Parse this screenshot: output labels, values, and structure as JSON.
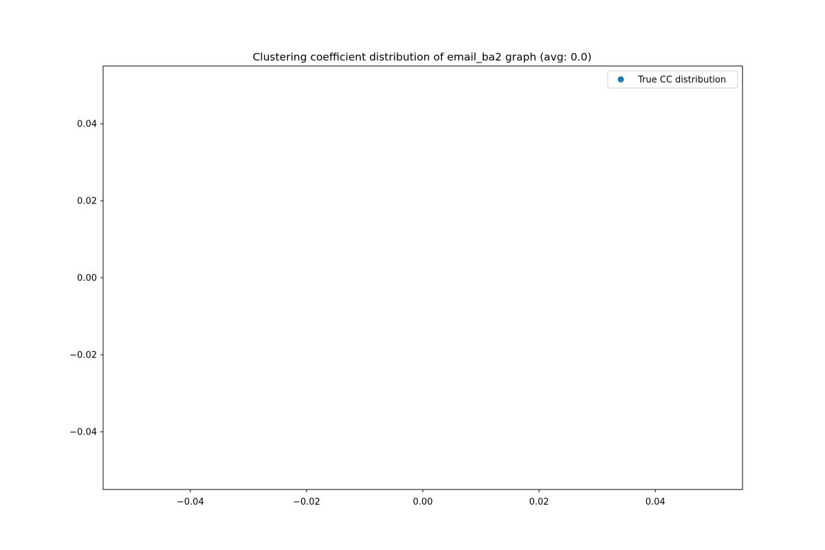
{
  "chart_data": {
    "type": "scatter",
    "title": "Clustering coefficient distribution of email_ba2 graph (avg: 0.0)",
    "xlabel": "",
    "ylabel": "",
    "xlim": [
      -0.055,
      0.055
    ],
    "ylim": [
      -0.055,
      0.055
    ],
    "xticks": [
      -0.04,
      -0.02,
      0.0,
      0.02,
      0.04
    ],
    "xtick_labels": [
      "−0.04",
      "−0.02",
      "0.00",
      "0.02",
      "0.04"
    ],
    "yticks": [
      0.04,
      0.02,
      0.0,
      -0.02,
      -0.04
    ],
    "ytick_labels": [
      "0.04",
      "0.02",
      "0.00",
      "−0.02",
      "−0.04"
    ],
    "grid": false,
    "legend_position": "top-right",
    "series": [
      {
        "name": "True CC distribution",
        "color": "#1f77b4",
        "marker": "circle",
        "x": [],
        "y": []
      }
    ]
  }
}
